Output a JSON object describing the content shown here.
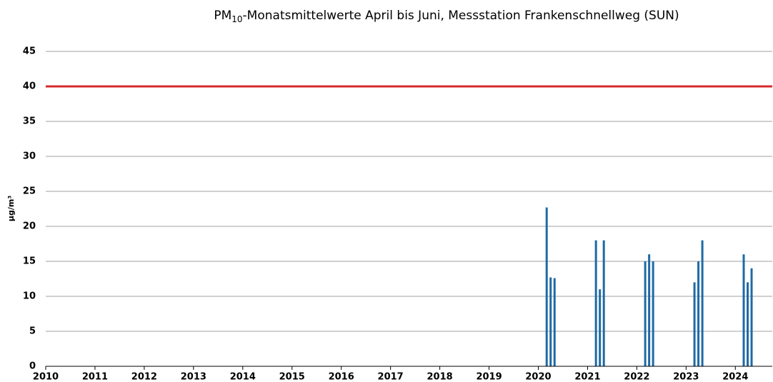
{
  "chart_data": {
    "type": "bar",
    "title": [
      "PM",
      "10",
      "-Monatsmittelwerte April bis Juni, Messstation Frankenschnellweg (SUN)"
    ],
    "y_label": "µg/m³",
    "x": [
      2020.17,
      2020.25,
      2020.33,
      2021.17,
      2021.25,
      2021.33,
      2022.17,
      2022.25,
      2022.33,
      2023.17,
      2023.25,
      2023.33,
      2024.17,
      2024.25,
      2024.33
    ],
    "values": [
      22.7,
      12.7,
      12.6,
      18,
      11,
      18,
      15,
      16,
      15,
      12,
      15,
      18,
      16,
      12,
      14
    ],
    "color": "#1f6aa5",
    "reference_line": {
      "value": 40,
      "color": "#d62b2b"
    },
    "xlim": [
      2010,
      2024.75
    ],
    "xticks": [
      2010,
      2011,
      2012,
      2013,
      2014,
      2015,
      2016,
      2017,
      2018,
      2019,
      2020,
      2021,
      2022,
      2023,
      2024
    ],
    "ylim": [
      0,
      45
    ],
    "yticks": [
      0,
      5,
      10,
      15,
      20,
      25,
      30,
      35,
      40,
      45
    ],
    "grid": true
  }
}
